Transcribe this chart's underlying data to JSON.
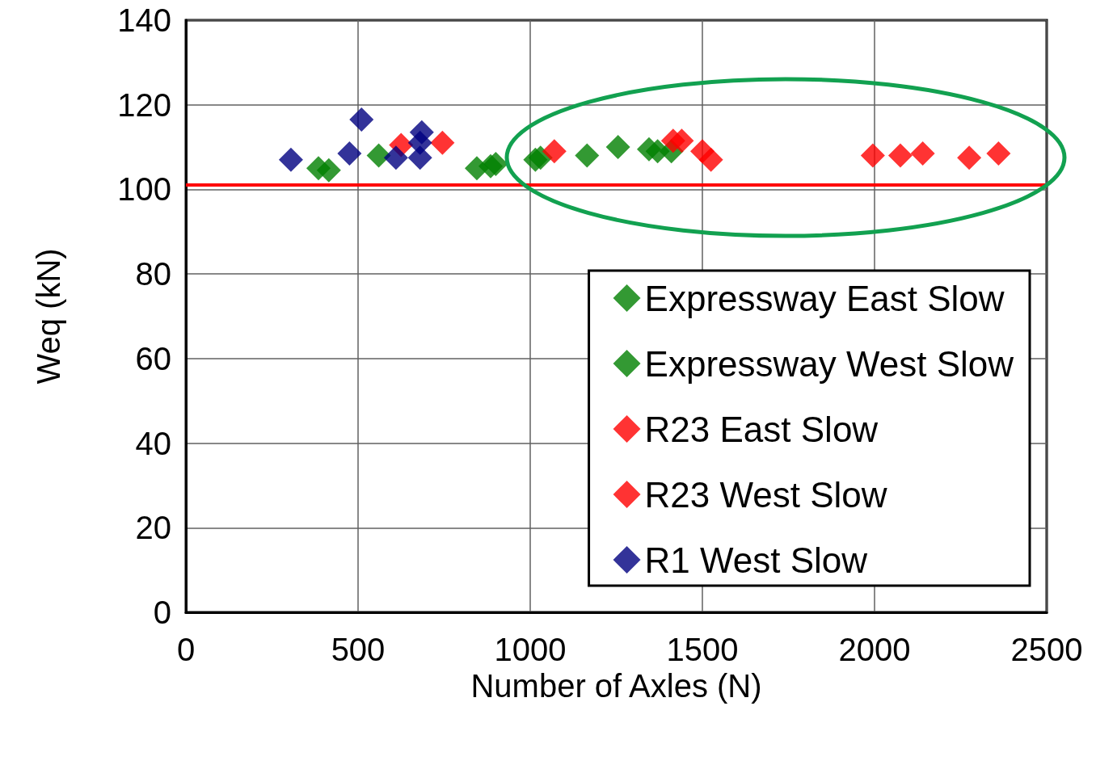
{
  "chart_data": {
    "type": "scatter",
    "xlabel": "Number of Axles (N)",
    "ylabel": "Weq (kN)",
    "xlim": [
      0,
      2500
    ],
    "xticks": [
      0,
      500,
      1000,
      1500,
      2000,
      2500
    ],
    "ylim": [
      0,
      140
    ],
    "yticks": [
      0,
      20,
      40,
      60,
      80,
      100,
      120,
      140
    ],
    "grid": true,
    "legend": "bottom right",
    "marker": "diamond",
    "series": [
      {
        "name": "Expressway East Slow",
        "color": "#008000",
        "x": [
          385,
          560,
          845,
          900,
          1030,
          1255,
          1370
        ],
        "values": [
          105,
          108,
          105,
          106,
          107.5,
          110,
          109
        ]
      },
      {
        "name": "Expressway West Slow",
        "color": "#008000",
        "x": [
          415,
          885,
          1015,
          1165,
          1345,
          1410
        ],
        "values": [
          104.5,
          105.5,
          107,
          108,
          109.5,
          109
        ]
      },
      {
        "name": "R23 East Slow",
        "color": "#ff0000",
        "x": [
          625,
          1070,
          1415,
          1525,
          2075,
          2275
        ],
        "values": [
          110.5,
          109,
          111.5,
          107,
          108,
          107.5
        ]
      },
      {
        "name": "R23 West Slow",
        "color": "#ff0000",
        "x": [
          745,
          1440,
          1500,
          1995,
          2140,
          2360
        ],
        "values": [
          111,
          111.5,
          109,
          108,
          108.5,
          108.5
        ]
      },
      {
        "name": "R1 West Slow",
        "color": "#000080",
        "x": [
          305,
          475,
          510,
          610,
          680,
          680,
          685
        ],
        "values": [
          107,
          108.5,
          116.5,
          107.5,
          107.5,
          111,
          113.5
        ]
      }
    ],
    "ref_lines": [
      {
        "axis": "y",
        "value": 101,
        "color": "#ff0000"
      }
    ]
  }
}
